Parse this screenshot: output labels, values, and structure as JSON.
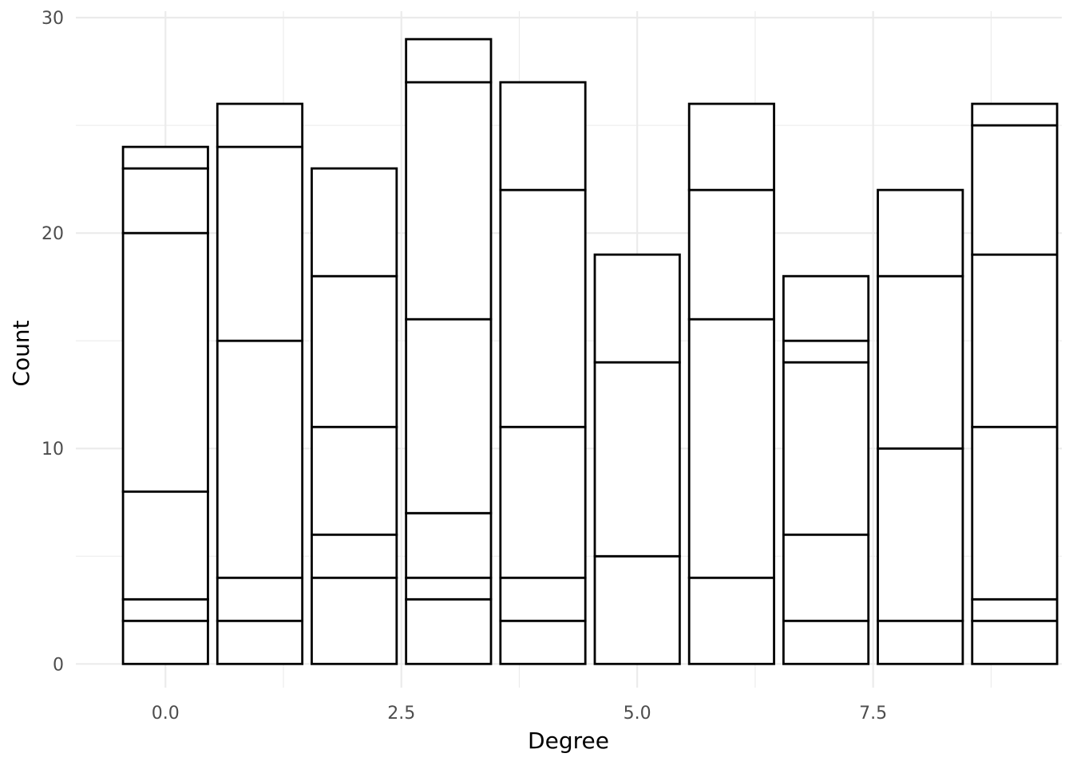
{
  "chart_data": {
    "type": "bar",
    "stacked": true,
    "title": "",
    "xlabel": "Degree",
    "ylabel": "Count",
    "xlim": [
      -0.95,
      9.5
    ],
    "ylim": [
      -1.1,
      30.3
    ],
    "x_ticks": [
      0.0,
      2.5,
      5.0,
      7.5
    ],
    "x_tick_labels": [
      "0.0",
      "2.5",
      "5.0",
      "7.5"
    ],
    "x_minor_ticks": [
      1.25,
      3.75,
      6.25,
      8.75
    ],
    "y_ticks": [
      0,
      10,
      20,
      30
    ],
    "y_tick_labels": [
      "0",
      "10",
      "20",
      "30"
    ],
    "y_minor_ticks": [
      5,
      15,
      25
    ],
    "grid": true,
    "legend": "none",
    "bar_width": 0.9,
    "fill_color": "#ffffff",
    "outline_color": "#000000",
    "bars": [
      {
        "x": 0,
        "segments": [
          2,
          1,
          5,
          12,
          3,
          1
        ],
        "total": 24
      },
      {
        "x": 1,
        "segments": [
          2,
          2,
          11,
          9,
          2
        ],
        "total": 26
      },
      {
        "x": 2,
        "segments": [
          4,
          2,
          5,
          7,
          5
        ],
        "total": 23
      },
      {
        "x": 3,
        "segments": [
          3,
          1,
          3,
          9,
          11,
          2
        ],
        "total": 29
      },
      {
        "x": 4,
        "segments": [
          2,
          2,
          7,
          11,
          5
        ],
        "total": 27
      },
      {
        "x": 5,
        "segments": [
          5,
          9,
          5
        ],
        "total": 19
      },
      {
        "x": 6,
        "segments": [
          4,
          12,
          6,
          4
        ],
        "total": 26
      },
      {
        "x": 7,
        "segments": [
          2,
          4,
          8,
          1,
          3
        ],
        "total": 18
      },
      {
        "x": 8,
        "segments": [
          2,
          8,
          8,
          4
        ],
        "total": 22
      },
      {
        "x": 9,
        "segments": [
          2,
          1,
          8,
          8,
          6,
          1
        ],
        "total": 26
      }
    ]
  }
}
